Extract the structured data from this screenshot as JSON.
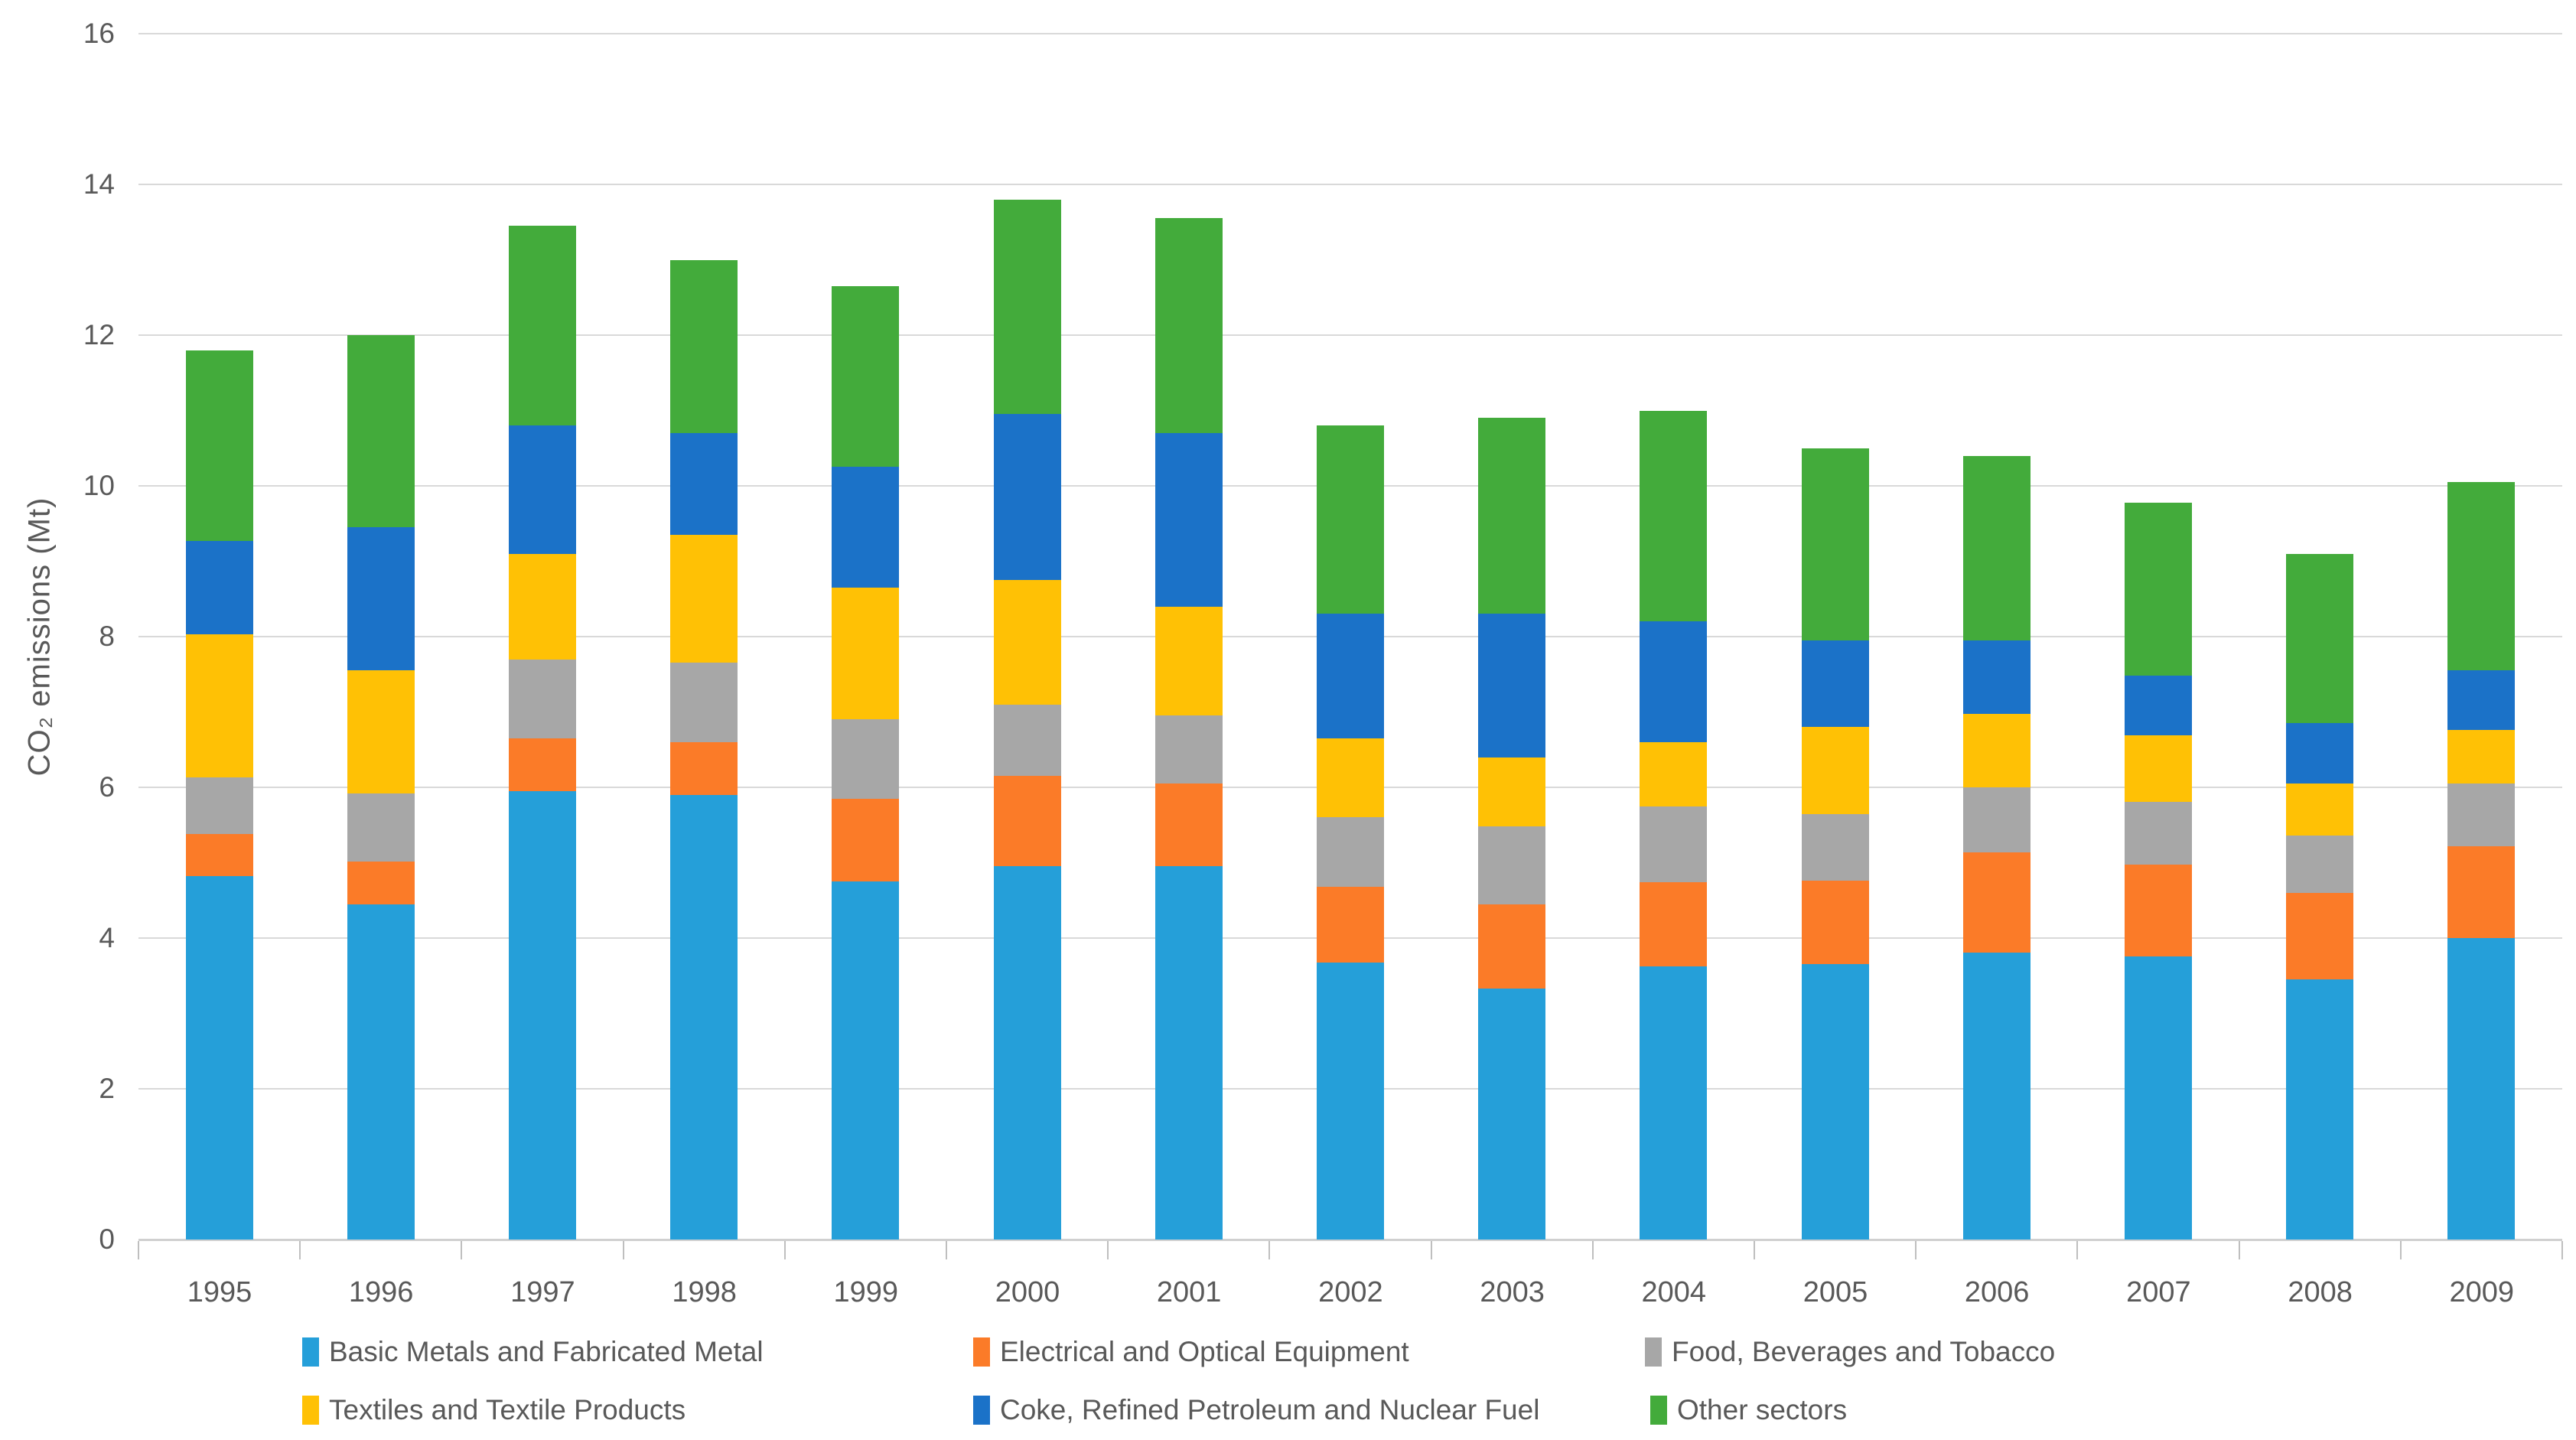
{
  "chart_data": {
    "type": "bar",
    "stacked": true,
    "title": "",
    "xlabel": "",
    "ylabel": "CO₂ emissions (Mt)",
    "ylim": [
      0,
      16
    ],
    "yticks": [
      0,
      2,
      4,
      6,
      8,
      10,
      12,
      14,
      16
    ],
    "grid": true,
    "legend_position": "bottom",
    "categories": [
      "1995",
      "1996",
      "1997",
      "1998",
      "1999",
      "2000",
      "2001",
      "2002",
      "2003",
      "2004",
      "2005",
      "2006",
      "2007",
      "2008",
      "2009"
    ],
    "series": [
      {
        "name": "Basic Metals and Fabricated Metal",
        "color": "#259FD9",
        "values": [
          4.82,
          4.45,
          5.95,
          5.9,
          4.75,
          4.95,
          4.95,
          3.68,
          3.33,
          3.62,
          3.65,
          3.81,
          3.76,
          3.45,
          4.0
        ]
      },
      {
        "name": "Electrical and Optical Equipment",
        "color": "#FB7B28",
        "values": [
          0.56,
          0.57,
          0.7,
          0.7,
          1.1,
          1.2,
          1.1,
          1.0,
          1.12,
          1.12,
          1.11,
          1.33,
          1.21,
          1.15,
          1.22
        ]
      },
      {
        "name": "Food, Beverages and Tobacco",
        "color": "#A7A7A7",
        "values": [
          0.75,
          0.9,
          1.05,
          1.05,
          1.05,
          0.95,
          0.9,
          0.92,
          1.03,
          1.01,
          0.88,
          0.86,
          0.84,
          0.76,
          0.83
        ]
      },
      {
        "name": "Textiles and Textile Products",
        "color": "#FFC105",
        "values": [
          1.9,
          1.63,
          1.4,
          1.7,
          1.75,
          1.65,
          1.45,
          1.05,
          0.92,
          0.85,
          1.16,
          0.97,
          0.88,
          0.69,
          0.71
        ]
      },
      {
        "name": "Coke, Refined Petroleum and Nuclear Fuel",
        "color": "#1B72C8",
        "values": [
          1.24,
          1.9,
          1.7,
          1.35,
          1.6,
          2.2,
          2.3,
          1.65,
          1.9,
          1.6,
          1.15,
          0.98,
          0.79,
          0.8,
          0.79
        ]
      },
      {
        "name": "Other sectors",
        "color": "#43AB3B",
        "values": [
          2.53,
          2.55,
          2.65,
          2.3,
          2.4,
          2.85,
          2.85,
          2.5,
          2.6,
          2.8,
          2.55,
          2.45,
          2.3,
          2.25,
          2.5
        ]
      }
    ],
    "totals": [
      11.8,
      12.0,
      13.45,
      13.0,
      12.65,
      13.8,
      13.55,
      10.8,
      10.9,
      11.0,
      10.5,
      10.4,
      9.78,
      9.1,
      10.05
    ]
  },
  "colors": {
    "background": "#FFFFFF",
    "gridline": "#D9D9D9",
    "axis_line": "#D0D0D0",
    "tick_mark": "#BFBFBF",
    "text": "#595959"
  }
}
